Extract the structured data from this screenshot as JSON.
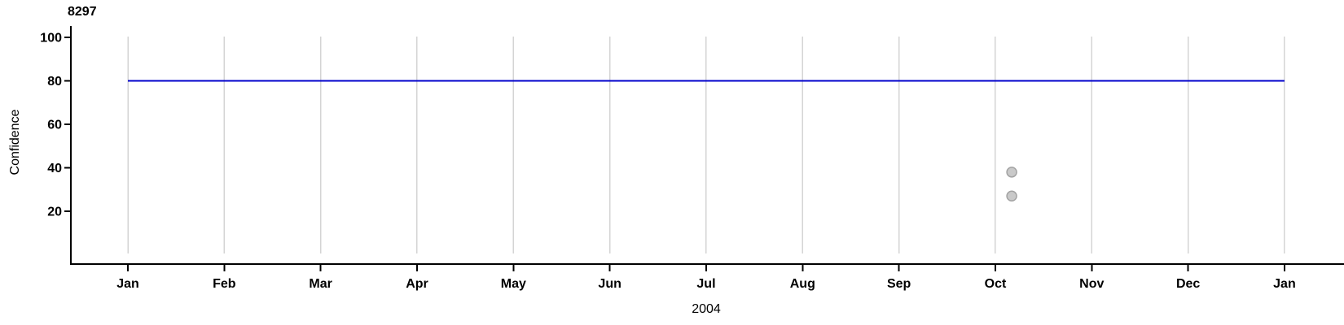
{
  "chart_data": {
    "type": "line",
    "title": "8297",
    "xlabel": "2004",
    "ylabel": "Confidence",
    "x_tick_labels": [
      "Jan",
      "Feb",
      "Mar",
      "Apr",
      "May",
      "Jun",
      "Jul",
      "Aug",
      "Sep",
      "Oct",
      "Nov",
      "Dec",
      "Jan"
    ],
    "y_ticks": [
      20,
      40,
      60,
      80,
      100
    ],
    "ylim": [
      0,
      105
    ],
    "x_range_months": [
      0,
      12
    ],
    "grid": "vertical-only",
    "legend": "none",
    "colors": {
      "background": "#ffffff",
      "axis": "#000000",
      "grid": "#d4d4d4",
      "line": "#0000cc",
      "marker_fill": "#c9c9c9",
      "marker_stroke": "#a3a3a3",
      "text": "#000000"
    },
    "series": [
      {
        "name": "confidence-level-line",
        "type": "line",
        "points": [
          {
            "month": 0,
            "value": 80
          },
          {
            "month": 12,
            "value": 80
          }
        ]
      },
      {
        "name": "observation-points",
        "type": "scatter",
        "points": [
          {
            "month": 9.17,
            "value": 38
          },
          {
            "month": 9.17,
            "value": 27
          }
        ]
      }
    ]
  }
}
